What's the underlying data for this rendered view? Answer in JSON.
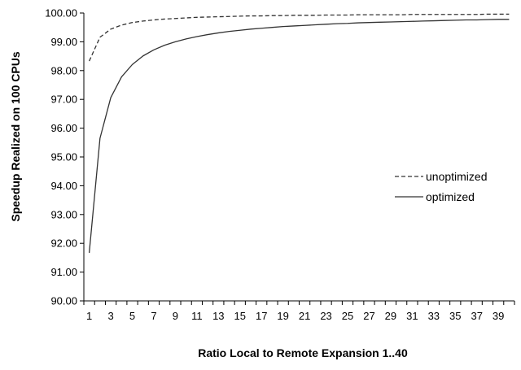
{
  "chart_data": {
    "type": "line",
    "xlabel": "Ratio Local to Remote Expansion 1..40",
    "ylabel": "Speedup Realized on 100 CPUs",
    "ylim": [
      90.0,
      100.0
    ],
    "y_ticks": [
      "90.00",
      "91.00",
      "92.00",
      "93.00",
      "94.00",
      "95.00",
      "96.00",
      "97.00",
      "98.00",
      "99.00",
      "100.00"
    ],
    "x_tick_labels": [
      "1",
      "3",
      "5",
      "7",
      "9",
      "11",
      "13",
      "15",
      "17",
      "19",
      "21",
      "23",
      "25",
      "27",
      "29",
      "31",
      "33",
      "35",
      "37",
      "39"
    ],
    "xlim": [
      1,
      40
    ],
    "grid": false,
    "legend_position": "right",
    "x": [
      1,
      2,
      3,
      4,
      5,
      6,
      7,
      8,
      9,
      10,
      11,
      12,
      13,
      14,
      15,
      16,
      17,
      18,
      19,
      20,
      21,
      22,
      23,
      24,
      25,
      26,
      27,
      28,
      29,
      30,
      31,
      32,
      33,
      34,
      35,
      36,
      37,
      38,
      39,
      40
    ],
    "series": [
      {
        "name": "unoptimized",
        "style": "dashed",
        "values": [
          98.33,
          99.16,
          99.44,
          99.58,
          99.67,
          99.72,
          99.76,
          99.79,
          99.81,
          99.83,
          99.85,
          99.86,
          99.87,
          99.88,
          99.89,
          99.9,
          99.9,
          99.91,
          99.91,
          99.92,
          99.92,
          99.92,
          99.93,
          99.93,
          99.93,
          99.94,
          99.94,
          99.94,
          99.94,
          99.94,
          99.95,
          99.95,
          99.95,
          99.95,
          99.95,
          99.95,
          99.95,
          99.96,
          99.96,
          99.96
        ]
      },
      {
        "name": "optimized",
        "style": "solid",
        "values": [
          91.67,
          95.65,
          97.06,
          97.78,
          98.21,
          98.51,
          98.72,
          98.88,
          99.0,
          99.1,
          99.18,
          99.25,
          99.31,
          99.36,
          99.4,
          99.44,
          99.47,
          99.5,
          99.53,
          99.55,
          99.57,
          99.59,
          99.61,
          99.63,
          99.64,
          99.66,
          99.67,
          99.68,
          99.69,
          99.7,
          99.71,
          99.72,
          99.73,
          99.74,
          99.75,
          99.76,
          99.76,
          99.77,
          99.78,
          99.78
        ]
      }
    ]
  }
}
